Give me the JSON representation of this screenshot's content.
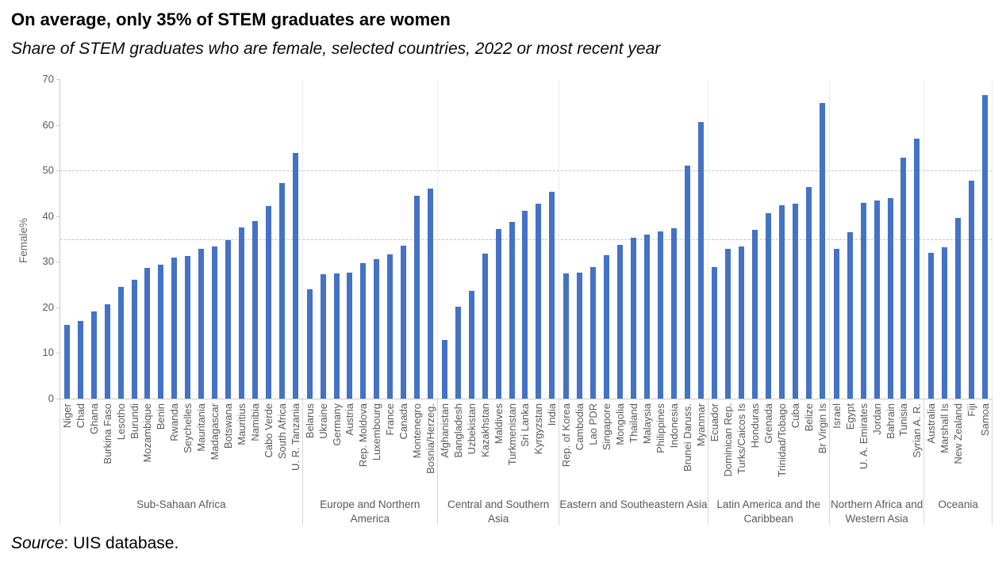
{
  "footer": {
    "source_label": "Source",
    "source_rest": ": UIS database."
  },
  "chart_data": {
    "type": "bar",
    "title": "On average, only 35% of STEM graduates are women",
    "subtitle": "Share of STEM graduates who are female, selected countries, 2022 or most recent year",
    "ylabel": "Female%",
    "ylim": [
      0,
      70
    ],
    "yticks": [
      0,
      10,
      20,
      30,
      40,
      50,
      60,
      70
    ],
    "reference_lines": [
      35,
      50
    ],
    "bar_color": "#4472C4",
    "grid": "dashed-horizontal",
    "legend": "none",
    "groups": [
      {
        "label": "Sub-Sahaan Africa",
        "categories": [
          "Niger",
          "Chad",
          "Ghana",
          "Burkina Faso",
          "Lesotho",
          "Burundi",
          "Mozambique",
          "Benin",
          "Rwanda",
          "Seychelles",
          "Mauritania",
          "Madagascar",
          "Botswana",
          "Mauritius",
          "Namibia",
          "Cabo Verde",
          "South Africa",
          "U. R. Tanzania"
        ],
        "values": [
          16.2,
          17.0,
          19.2,
          20.6,
          24.5,
          26.1,
          28.7,
          29.4,
          31.0,
          31.3,
          32.9,
          33.3,
          34.7,
          37.6,
          39.0,
          42.2,
          47.2,
          53.8
        ]
      },
      {
        "label": "Europe and Northern America",
        "categories": [
          "Belarus",
          "Ukraine",
          "Germany",
          "Austria",
          "Rep. Moldova",
          "Luxembourg",
          "France",
          "Canada",
          "Montenegro",
          "Bosnia/Herzeg."
        ],
        "values": [
          23.9,
          27.2,
          27.4,
          27.7,
          29.7,
          30.6,
          31.7,
          33.6,
          44.4,
          46.1
        ]
      },
      {
        "label": "Central and Southern Asia",
        "categories": [
          "Afghanistan",
          "Bangladesh",
          "Uzbekistan",
          "Kazakhstan",
          "Maldives",
          "Turkmenistan",
          "Sri Lanka",
          "Kyrgyzstan",
          "India"
        ],
        "values": [
          12.8,
          20.2,
          23.7,
          31.8,
          37.1,
          38.8,
          41.1,
          42.8,
          45.3
        ]
      },
      {
        "label": "Eastern and Southeastern Asia",
        "categories": [
          "Rep. of Korea",
          "Cambodia",
          "Lao PDR",
          "Singapore",
          "Mongolia",
          "Thailand",
          "Malaysia",
          "Philippines",
          "Indonesia",
          "Brunei Daruss.",
          "Myanmar"
        ],
        "values": [
          27.5,
          27.7,
          28.9,
          31.4,
          33.7,
          35.2,
          35.9,
          36.6,
          37.4,
          51.0,
          60.6
        ]
      },
      {
        "label": "Latin America and the Caribbean",
        "categories": [
          "Ecuador",
          "Dominican Rep.",
          "Turks/Caicos Is",
          "Honduras",
          "Grenada",
          "Trinidad/Tobago",
          "Cuba",
          "Belize",
          "Br Virgin Is"
        ],
        "values": [
          28.9,
          32.9,
          33.3,
          37.0,
          40.6,
          42.4,
          42.7,
          46.3,
          64.8
        ]
      },
      {
        "label": "Northern Africa and Western Asia",
        "categories": [
          "Israel",
          "Egypt",
          "U. A. Emirates",
          "Jordan",
          "Bahrain",
          "Tunisia",
          "Syrian A. R."
        ],
        "values": [
          32.9,
          36.5,
          42.9,
          43.5,
          44.0,
          52.8,
          56.9
        ]
      },
      {
        "label": "Oceania",
        "categories": [
          "Australia",
          "Marshall Is",
          "New Zealand",
          "Fiji",
          "Samoa"
        ],
        "values": [
          31.9,
          33.1,
          39.6,
          47.8,
          66.5
        ]
      }
    ]
  }
}
